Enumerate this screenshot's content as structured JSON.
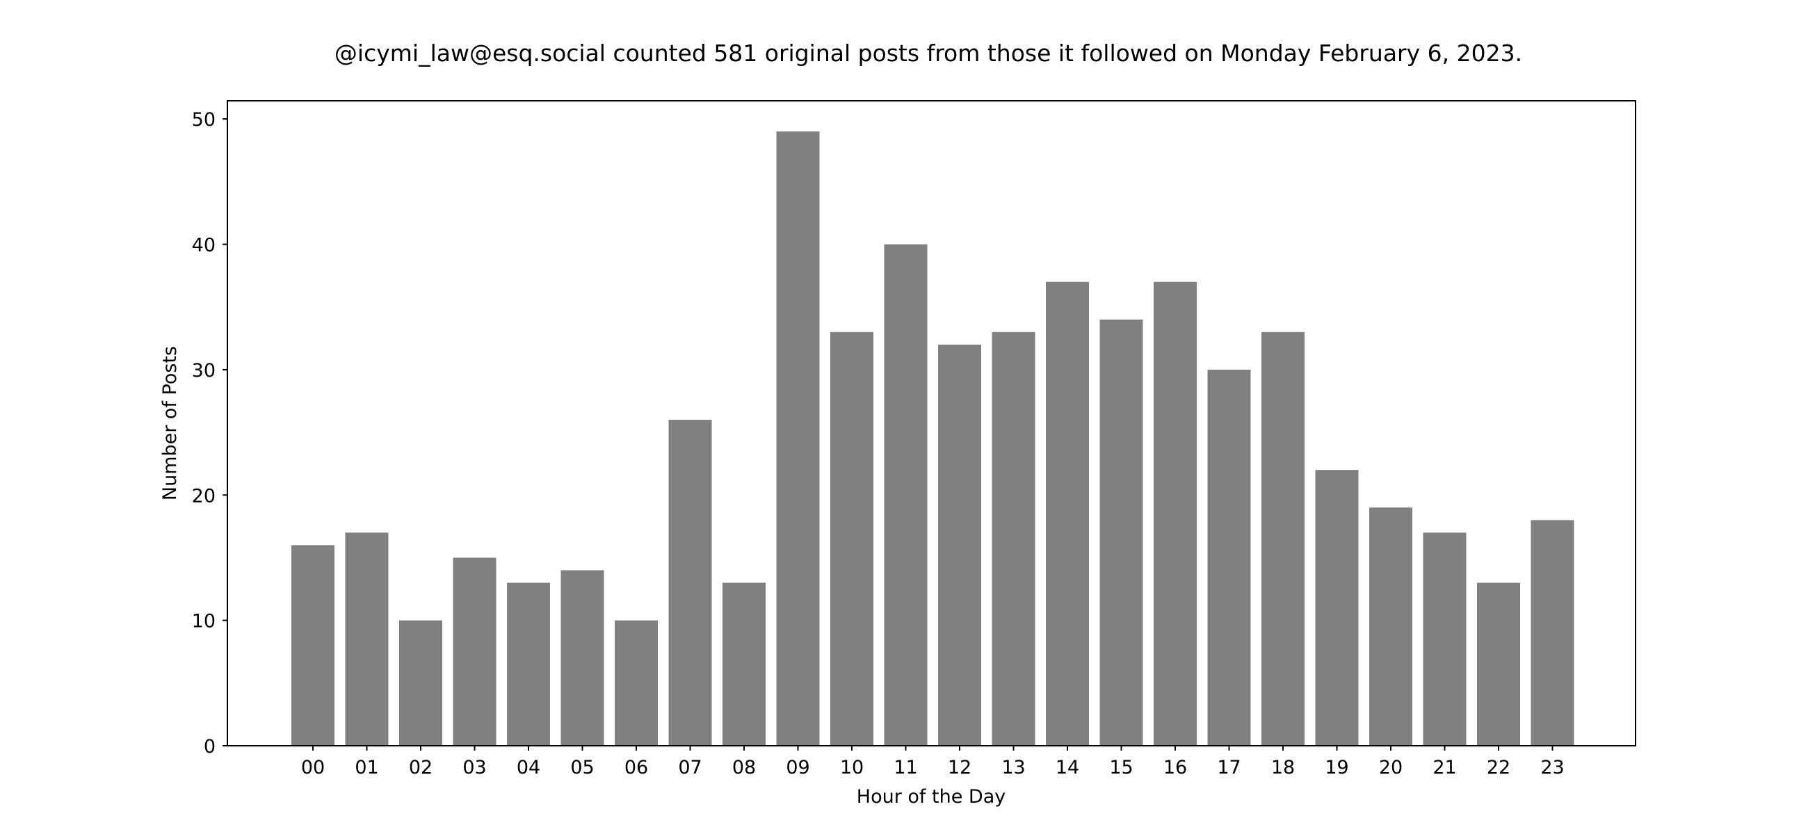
{
  "chart_data": {
    "type": "bar",
    "title": "@icymi_law@esq.social counted 581 original posts from those it followed on Monday February 6, 2023.",
    "xlabel": "Hour of the Day",
    "ylabel": "Number of Posts",
    "categories": [
      "00",
      "01",
      "02",
      "03",
      "04",
      "05",
      "06",
      "07",
      "08",
      "09",
      "10",
      "11",
      "12",
      "13",
      "14",
      "15",
      "16",
      "17",
      "18",
      "19",
      "20",
      "21",
      "22",
      "23"
    ],
    "values": [
      16,
      17,
      10,
      15,
      13,
      14,
      10,
      26,
      13,
      49,
      33,
      40,
      32,
      33,
      37,
      34,
      37,
      30,
      33,
      22,
      19,
      17,
      13,
      18
    ],
    "ylim": [
      0,
      51.45
    ],
    "yticks": [
      0,
      10,
      20,
      30,
      40,
      50
    ],
    "grid": false,
    "legend": "none",
    "bar_color": "#808080"
  }
}
